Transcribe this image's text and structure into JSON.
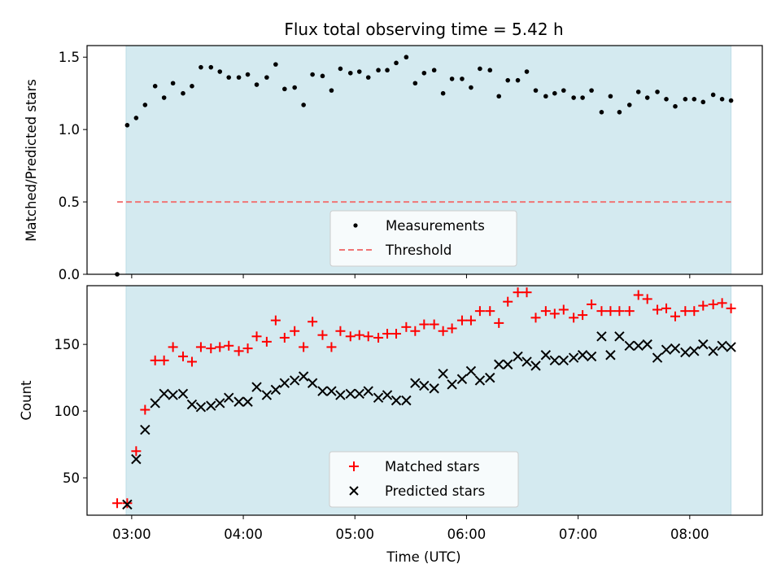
{
  "chart_data": {
    "type": "scatter",
    "title": "Flux total observing time = 5.42 h",
    "xlabel": "Time (UTC)",
    "x_ticks": [
      "03:00",
      "04:00",
      "05:00",
      "06:00",
      "07:00",
      "08:00"
    ],
    "x_tick_values": [
      3.0,
      4.0,
      5.0,
      6.0,
      7.0,
      8.0
    ],
    "xlim": [
      2.6,
      8.65
    ],
    "observing_window": [
      2.95,
      8.37
    ],
    "colors": {
      "observing_band": "#d4eaf0",
      "measurements": "#000000",
      "threshold": "#f07575",
      "matched": "#ff0000",
      "predicted": "#000000"
    },
    "panels": [
      {
        "ylabel": "Matched/Predicted stars",
        "ylim": [
          0.0,
          1.58
        ],
        "y_ticks": [
          "0.0",
          "0.5",
          "1.0",
          "1.5"
        ],
        "y_tick_values": [
          0.0,
          0.5,
          1.0,
          1.5
        ],
        "legend_position": "lower center",
        "series": [
          {
            "name": "Measurements",
            "marker": "dot",
            "points": [
              [
                2.87,
                0.0
              ],
              [
                2.96,
                1.03
              ],
              [
                3.04,
                1.08
              ],
              [
                3.12,
                1.17
              ],
              [
                3.21,
                1.3
              ],
              [
                3.29,
                1.22
              ],
              [
                3.37,
                1.32
              ],
              [
                3.46,
                1.25
              ],
              [
                3.54,
                1.3
              ],
              [
                3.62,
                1.43
              ],
              [
                3.71,
                1.43
              ],
              [
                3.79,
                1.4
              ],
              [
                3.87,
                1.36
              ],
              [
                3.96,
                1.36
              ],
              [
                4.04,
                1.38
              ],
              [
                4.12,
                1.31
              ],
              [
                4.21,
                1.36
              ],
              [
                4.29,
                1.45
              ],
              [
                4.37,
                1.28
              ],
              [
                4.46,
                1.29
              ],
              [
                4.54,
                1.17
              ],
              [
                4.62,
                1.38
              ],
              [
                4.71,
                1.37
              ],
              [
                4.79,
                1.27
              ],
              [
                4.87,
                1.42
              ],
              [
                4.96,
                1.39
              ],
              [
                5.04,
                1.4
              ],
              [
                5.12,
                1.36
              ],
              [
                5.21,
                1.41
              ],
              [
                5.29,
                1.41
              ],
              [
                5.37,
                1.46
              ],
              [
                5.46,
                1.5
              ],
              [
                5.54,
                1.32
              ],
              [
                5.62,
                1.39
              ],
              [
                5.71,
                1.41
              ],
              [
                5.79,
                1.25
              ],
              [
                5.87,
                1.35
              ],
              [
                5.96,
                1.35
              ],
              [
                6.04,
                1.29
              ],
              [
                6.12,
                1.42
              ],
              [
                6.21,
                1.41
              ],
              [
                6.29,
                1.23
              ],
              [
                6.37,
                1.34
              ],
              [
                6.46,
                1.34
              ],
              [
                6.54,
                1.4
              ],
              [
                6.62,
                1.27
              ],
              [
                6.71,
                1.23
              ],
              [
                6.79,
                1.25
              ],
              [
                6.87,
                1.27
              ],
              [
                6.96,
                1.22
              ],
              [
                7.04,
                1.22
              ],
              [
                7.12,
                1.27
              ],
              [
                7.21,
                1.12
              ],
              [
                7.29,
                1.23
              ],
              [
                7.37,
                1.12
              ],
              [
                7.46,
                1.17
              ],
              [
                7.54,
                1.26
              ],
              [
                7.62,
                1.22
              ],
              [
                7.71,
                1.26
              ],
              [
                7.79,
                1.21
              ],
              [
                7.87,
                1.16
              ],
              [
                7.96,
                1.21
              ],
              [
                8.04,
                1.21
              ],
              [
                8.12,
                1.19
              ],
              [
                8.21,
                1.24
              ],
              [
                8.29,
                1.21
              ],
              [
                8.37,
                1.2
              ]
            ]
          },
          {
            "name": "Threshold",
            "marker": "dashed-line",
            "x": [
              2.87,
              8.37
            ],
            "y": [
              0.5,
              0.5
            ]
          }
        ]
      },
      {
        "ylabel": "Count",
        "ylim": [
          22,
          194
        ],
        "y_ticks": [
          "50",
          "100",
          "150"
        ],
        "y_tick_values": [
          50,
          100,
          150
        ],
        "legend_position": "lower center",
        "series": [
          {
            "name": "Matched stars",
            "marker": "plus",
            "points": [
              [
                2.87,
                31
              ],
              [
                2.96,
                31
              ],
              [
                3.04,
                70
              ],
              [
                3.12,
                101
              ],
              [
                3.21,
                138
              ],
              [
                3.29,
                138
              ],
              [
                3.37,
                148
              ],
              [
                3.46,
                141
              ],
              [
                3.54,
                137
              ],
              [
                3.62,
                148
              ],
              [
                3.71,
                147
              ],
              [
                3.79,
                148
              ],
              [
                3.87,
                149
              ],
              [
                3.96,
                145
              ],
              [
                4.04,
                147
              ],
              [
                4.12,
                156
              ],
              [
                4.21,
                152
              ],
              [
                4.29,
                168
              ],
              [
                4.37,
                155
              ],
              [
                4.46,
                160
              ],
              [
                4.54,
                148
              ],
              [
                4.62,
                167
              ],
              [
                4.71,
                157
              ],
              [
                4.79,
                148
              ],
              [
                4.87,
                160
              ],
              [
                4.96,
                156
              ],
              [
                5.04,
                157
              ],
              [
                5.12,
                156
              ],
              [
                5.21,
                155
              ],
              [
                5.29,
                158
              ],
              [
                5.37,
                158
              ],
              [
                5.46,
                163
              ],
              [
                5.54,
                160
              ],
              [
                5.62,
                165
              ],
              [
                5.71,
                165
              ],
              [
                5.79,
                160
              ],
              [
                5.87,
                162
              ],
              [
                5.96,
                168
              ],
              [
                6.04,
                168
              ],
              [
                6.12,
                175
              ],
              [
                6.21,
                175
              ],
              [
                6.29,
                166
              ],
              [
                6.37,
                182
              ],
              [
                6.46,
                189
              ],
              [
                6.54,
                189
              ],
              [
                6.62,
                170
              ],
              [
                6.71,
                175
              ],
              [
                6.79,
                173
              ],
              [
                6.87,
                176
              ],
              [
                6.96,
                170
              ],
              [
                7.04,
                172
              ],
              [
                7.12,
                180
              ],
              [
                7.21,
                175
              ],
              [
                7.29,
                175
              ],
              [
                7.37,
                175
              ],
              [
                7.46,
                175
              ],
              [
                7.54,
                187
              ],
              [
                7.62,
                184
              ],
              [
                7.71,
                176
              ],
              [
                7.79,
                177
              ],
              [
                7.87,
                171
              ],
              [
                7.96,
                175
              ],
              [
                8.04,
                175
              ],
              [
                8.12,
                179
              ],
              [
                8.21,
                180
              ],
              [
                8.29,
                181
              ],
              [
                8.37,
                177
              ]
            ]
          },
          {
            "name": "Predicted stars",
            "marker": "x",
            "points": [
              [
                2.96,
                30
              ],
              [
                3.04,
                64
              ],
              [
                3.12,
                86
              ],
              [
                3.21,
                106
              ],
              [
                3.29,
                113
              ],
              [
                3.37,
                112
              ],
              [
                3.46,
                113
              ],
              [
                3.54,
                105
              ],
              [
                3.62,
                103
              ],
              [
                3.71,
                104
              ],
              [
                3.79,
                106
              ],
              [
                3.87,
                110
              ],
              [
                3.96,
                107
              ],
              [
                4.04,
                107
              ],
              [
                4.12,
                118
              ],
              [
                4.21,
                112
              ],
              [
                4.29,
                116
              ],
              [
                4.37,
                121
              ],
              [
                4.46,
                123
              ],
              [
                4.54,
                126
              ],
              [
                4.62,
                121
              ],
              [
                4.71,
                115
              ],
              [
                4.79,
                115
              ],
              [
                4.87,
                112
              ],
              [
                4.96,
                113
              ],
              [
                5.04,
                113
              ],
              [
                5.12,
                115
              ],
              [
                5.21,
                110
              ],
              [
                5.29,
                112
              ],
              [
                5.37,
                108
              ],
              [
                5.46,
                108
              ],
              [
                5.54,
                121
              ],
              [
                5.62,
                119
              ],
              [
                5.71,
                117
              ],
              [
                5.79,
                128
              ],
              [
                5.87,
                120
              ],
              [
                5.96,
                124
              ],
              [
                6.04,
                130
              ],
              [
                6.12,
                123
              ],
              [
                6.21,
                125
              ],
              [
                6.29,
                135
              ],
              [
                6.37,
                135
              ],
              [
                6.46,
                141
              ],
              [
                6.54,
                137
              ],
              [
                6.62,
                134
              ],
              [
                6.71,
                142
              ],
              [
                6.79,
                138
              ],
              [
                6.87,
                138
              ],
              [
                6.96,
                140
              ],
              [
                7.04,
                142
              ],
              [
                7.12,
                141
              ],
              [
                7.21,
                156
              ],
              [
                7.29,
                142
              ],
              [
                7.37,
                156
              ],
              [
                7.46,
                149
              ],
              [
                7.54,
                149
              ],
              [
                7.62,
                150
              ],
              [
                7.71,
                140
              ],
              [
                7.79,
                146
              ],
              [
                7.87,
                147
              ],
              [
                7.96,
                144
              ],
              [
                8.04,
                145
              ],
              [
                8.12,
                150
              ],
              [
                8.21,
                145
              ],
              [
                8.29,
                149
              ],
              [
                8.37,
                148
              ]
            ]
          }
        ]
      }
    ]
  }
}
